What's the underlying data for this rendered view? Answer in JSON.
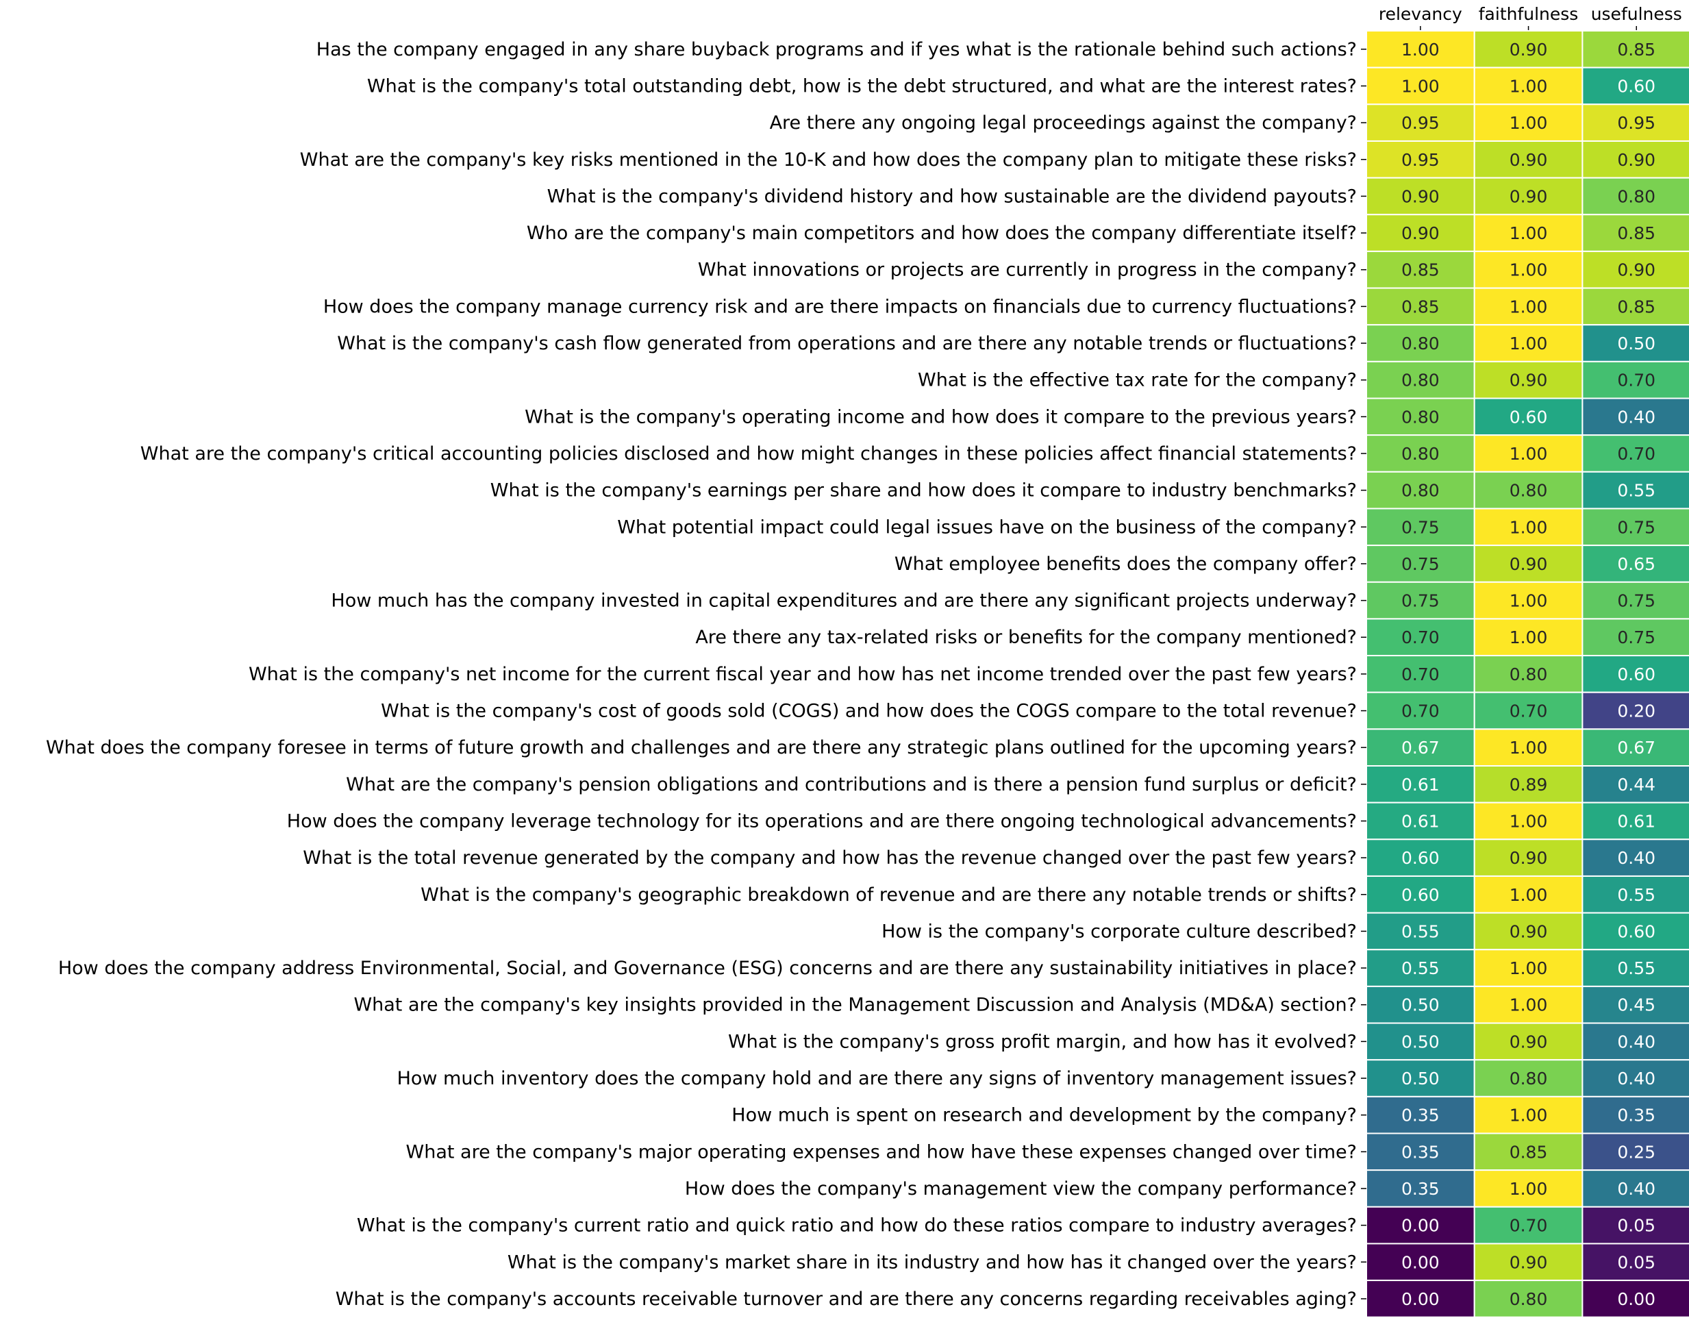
{
  "chart_data": {
    "type": "heatmap",
    "colormap": "viridis",
    "value_range": [
      0,
      1
    ],
    "columns": [
      "relevancy",
      "faithfulness",
      "usefulness"
    ],
    "rows": [
      {
        "question": "Has the company engaged in any share buyback programs and if yes what is the rationale behind such actions?",
        "values": [
          "1.00",
          "0.90",
          "0.85"
        ]
      },
      {
        "question": "What is the company's total outstanding debt, how is the debt structured, and what are the interest rates?",
        "values": [
          "1.00",
          "1.00",
          "0.60"
        ]
      },
      {
        "question": "Are there any ongoing legal proceedings against the company?",
        "values": [
          "0.95",
          "1.00",
          "0.95"
        ]
      },
      {
        "question": "What are the company's key risks mentioned in the 10-K and how does the company plan to mitigate these risks?",
        "values": [
          "0.95",
          "0.90",
          "0.90"
        ]
      },
      {
        "question": "What is the company's dividend history and how sustainable are the dividend payouts?",
        "values": [
          "0.90",
          "0.90",
          "0.80"
        ]
      },
      {
        "question": "Who are the company's main competitors and how does the company differentiate itself?",
        "values": [
          "0.90",
          "1.00",
          "0.85"
        ]
      },
      {
        "question": "What innovations or projects are currently in progress in the company?",
        "values": [
          "0.85",
          "1.00",
          "0.90"
        ]
      },
      {
        "question": "How does the company manage currency risk and are there impacts on financials due to currency fluctuations?",
        "values": [
          "0.85",
          "1.00",
          "0.85"
        ]
      },
      {
        "question": "What is the company's cash flow generated from operations and are there any notable trends or fluctuations?",
        "values": [
          "0.80",
          "1.00",
          "0.50"
        ]
      },
      {
        "question": "What is the effective tax rate for the company?",
        "values": [
          "0.80",
          "0.90",
          "0.70"
        ]
      },
      {
        "question": "What is the company's operating income and how does it compare to the previous years?",
        "values": [
          "0.80",
          "0.60",
          "0.40"
        ]
      },
      {
        "question": "What are the company's critical accounting policies disclosed and how might changes in these policies affect financial statements?",
        "values": [
          "0.80",
          "1.00",
          "0.70"
        ]
      },
      {
        "question": "What is the company's earnings per share and how does it compare to industry benchmarks?",
        "values": [
          "0.80",
          "0.80",
          "0.55"
        ]
      },
      {
        "question": "What potential impact could legal issues have on the business of the company?",
        "values": [
          "0.75",
          "1.00",
          "0.75"
        ]
      },
      {
        "question": "What employee benefits does the company offer?",
        "values": [
          "0.75",
          "0.90",
          "0.65"
        ]
      },
      {
        "question": "How much has the company invested in capital expenditures and are there any significant projects underway?",
        "values": [
          "0.75",
          "1.00",
          "0.75"
        ]
      },
      {
        "question": "Are there any tax-related risks or benefits for the company mentioned?",
        "values": [
          "0.70",
          "1.00",
          "0.75"
        ]
      },
      {
        "question": "What is the company's net income for the current fiscal year and how has net income trended over the past few years?",
        "values": [
          "0.70",
          "0.80",
          "0.60"
        ]
      },
      {
        "question": "What is the company's cost of goods sold (COGS) and how does the COGS compare to the total revenue?",
        "values": [
          "0.70",
          "0.70",
          "0.20"
        ]
      },
      {
        "question": "What does the company foresee in terms of future growth and challenges and are there any strategic plans outlined for the upcoming years?",
        "values": [
          "0.67",
          "1.00",
          "0.67"
        ]
      },
      {
        "question": "What are the company's pension obligations and contributions and is there a pension fund surplus or deficit?",
        "values": [
          "0.61",
          "0.89",
          "0.44"
        ]
      },
      {
        "question": "How does the company leverage technology for its operations and are there ongoing technological advancements?",
        "values": [
          "0.61",
          "1.00",
          "0.61"
        ]
      },
      {
        "question": "What is the total revenue generated by the company and how has the revenue changed over the past few years?",
        "values": [
          "0.60",
          "0.90",
          "0.40"
        ]
      },
      {
        "question": "What is the company's geographic breakdown of revenue and are there any notable trends or shifts?",
        "values": [
          "0.60",
          "1.00",
          "0.55"
        ]
      },
      {
        "question": "How is the company's corporate culture described?",
        "values": [
          "0.55",
          "0.90",
          "0.60"
        ]
      },
      {
        "question": "How does the company address Environmental, Social, and Governance (ESG) concerns and are there any sustainability initiatives in place?",
        "values": [
          "0.55",
          "1.00",
          "0.55"
        ]
      },
      {
        "question": "What are the company's key insights provided in the Management Discussion and Analysis (MD&A) section?",
        "values": [
          "0.50",
          "1.00",
          "0.45"
        ]
      },
      {
        "question": "What is the company's gross profit margin, and how has it evolved?",
        "values": [
          "0.50",
          "0.90",
          "0.40"
        ]
      },
      {
        "question": "How much inventory does the company hold and are there any signs of inventory management issues?",
        "values": [
          "0.50",
          "0.80",
          "0.40"
        ]
      },
      {
        "question": "How much is spent on research and development by the company?",
        "values": [
          "0.35",
          "1.00",
          "0.35"
        ]
      },
      {
        "question": "What are the company's major operating expenses and how have these expenses changed over time?",
        "values": [
          "0.35",
          "0.85",
          "0.25"
        ]
      },
      {
        "question": "How does the company's management view the company performance?",
        "values": [
          "0.35",
          "1.00",
          "0.40"
        ]
      },
      {
        "question": "What is the company's current ratio and quick ratio and how do these ratios compare to industry averages?",
        "values": [
          "0.00",
          "0.70",
          "0.05"
        ]
      },
      {
        "question": "What is the company's market share in its industry and how has it changed over the years?",
        "values": [
          "0.00",
          "0.90",
          "0.05"
        ]
      },
      {
        "question": "What is the company's accounts receivable turnover and are there any concerns regarding receivables aging?",
        "values": [
          "0.00",
          "0.80",
          "0.00"
        ]
      }
    ]
  }
}
